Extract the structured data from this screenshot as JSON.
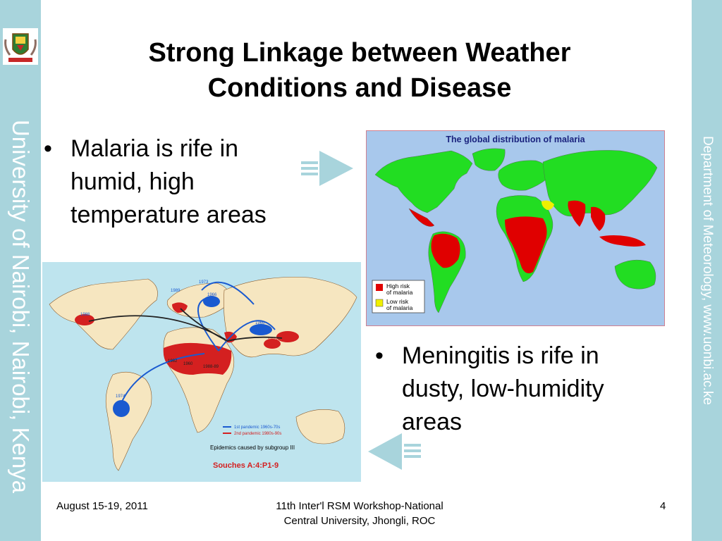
{
  "slide": {
    "title_line1": "Strong Linkage between Weather",
    "title_line2": "Conditions and Disease",
    "bullets": [
      {
        "line1": "Malaria is rife in",
        "line2": "humid, high",
        "line3": "temperature areas"
      },
      {
        "line1": "Meningitis is rife in",
        "line2": "dusty, low-humidity",
        "line3": "areas"
      }
    ]
  },
  "sidebar": {
    "left_text": "University of Nairobi, Nairobi, Kenya",
    "right_text": "Department of Meteorology, www.uonbi.ac.ke"
  },
  "malaria_map": {
    "title": "The global distribution of malaria",
    "legend": [
      {
        "line1": "High risk",
        "line2": "of malaria",
        "color": "#e00000"
      },
      {
        "line1": "Low risk",
        "line2": "of malaria",
        "color": "#f0f000"
      }
    ]
  },
  "meningitis_map": {
    "years": [
      "1973",
      "1989",
      "1966",
      "1988",
      "1966",
      "1983",
      "1983",
      "1974",
      "1982",
      "1960",
      "1988-89"
    ],
    "legend_line1": "1st pandemic 1960s-70s",
    "legend_line2": "2nd pandemic 1980s-90s",
    "caption": "Epidemics caused by subgroup III",
    "strain": "Souches A:4:P1-9"
  },
  "footer": {
    "date": "August 15-19, 2011",
    "event_line1": "11th Inter'l RSM Workshop-National",
    "event_line2": "Central University, Jhongli, ROC",
    "page_number": "4"
  },
  "colors": {
    "band": "#a8d4dc",
    "arrow": "#a8d4dc",
    "land_green": "#22dd22",
    "high_risk": "#e00000",
    "low_risk": "#f0f000",
    "ocean": "#a8c8ec"
  }
}
